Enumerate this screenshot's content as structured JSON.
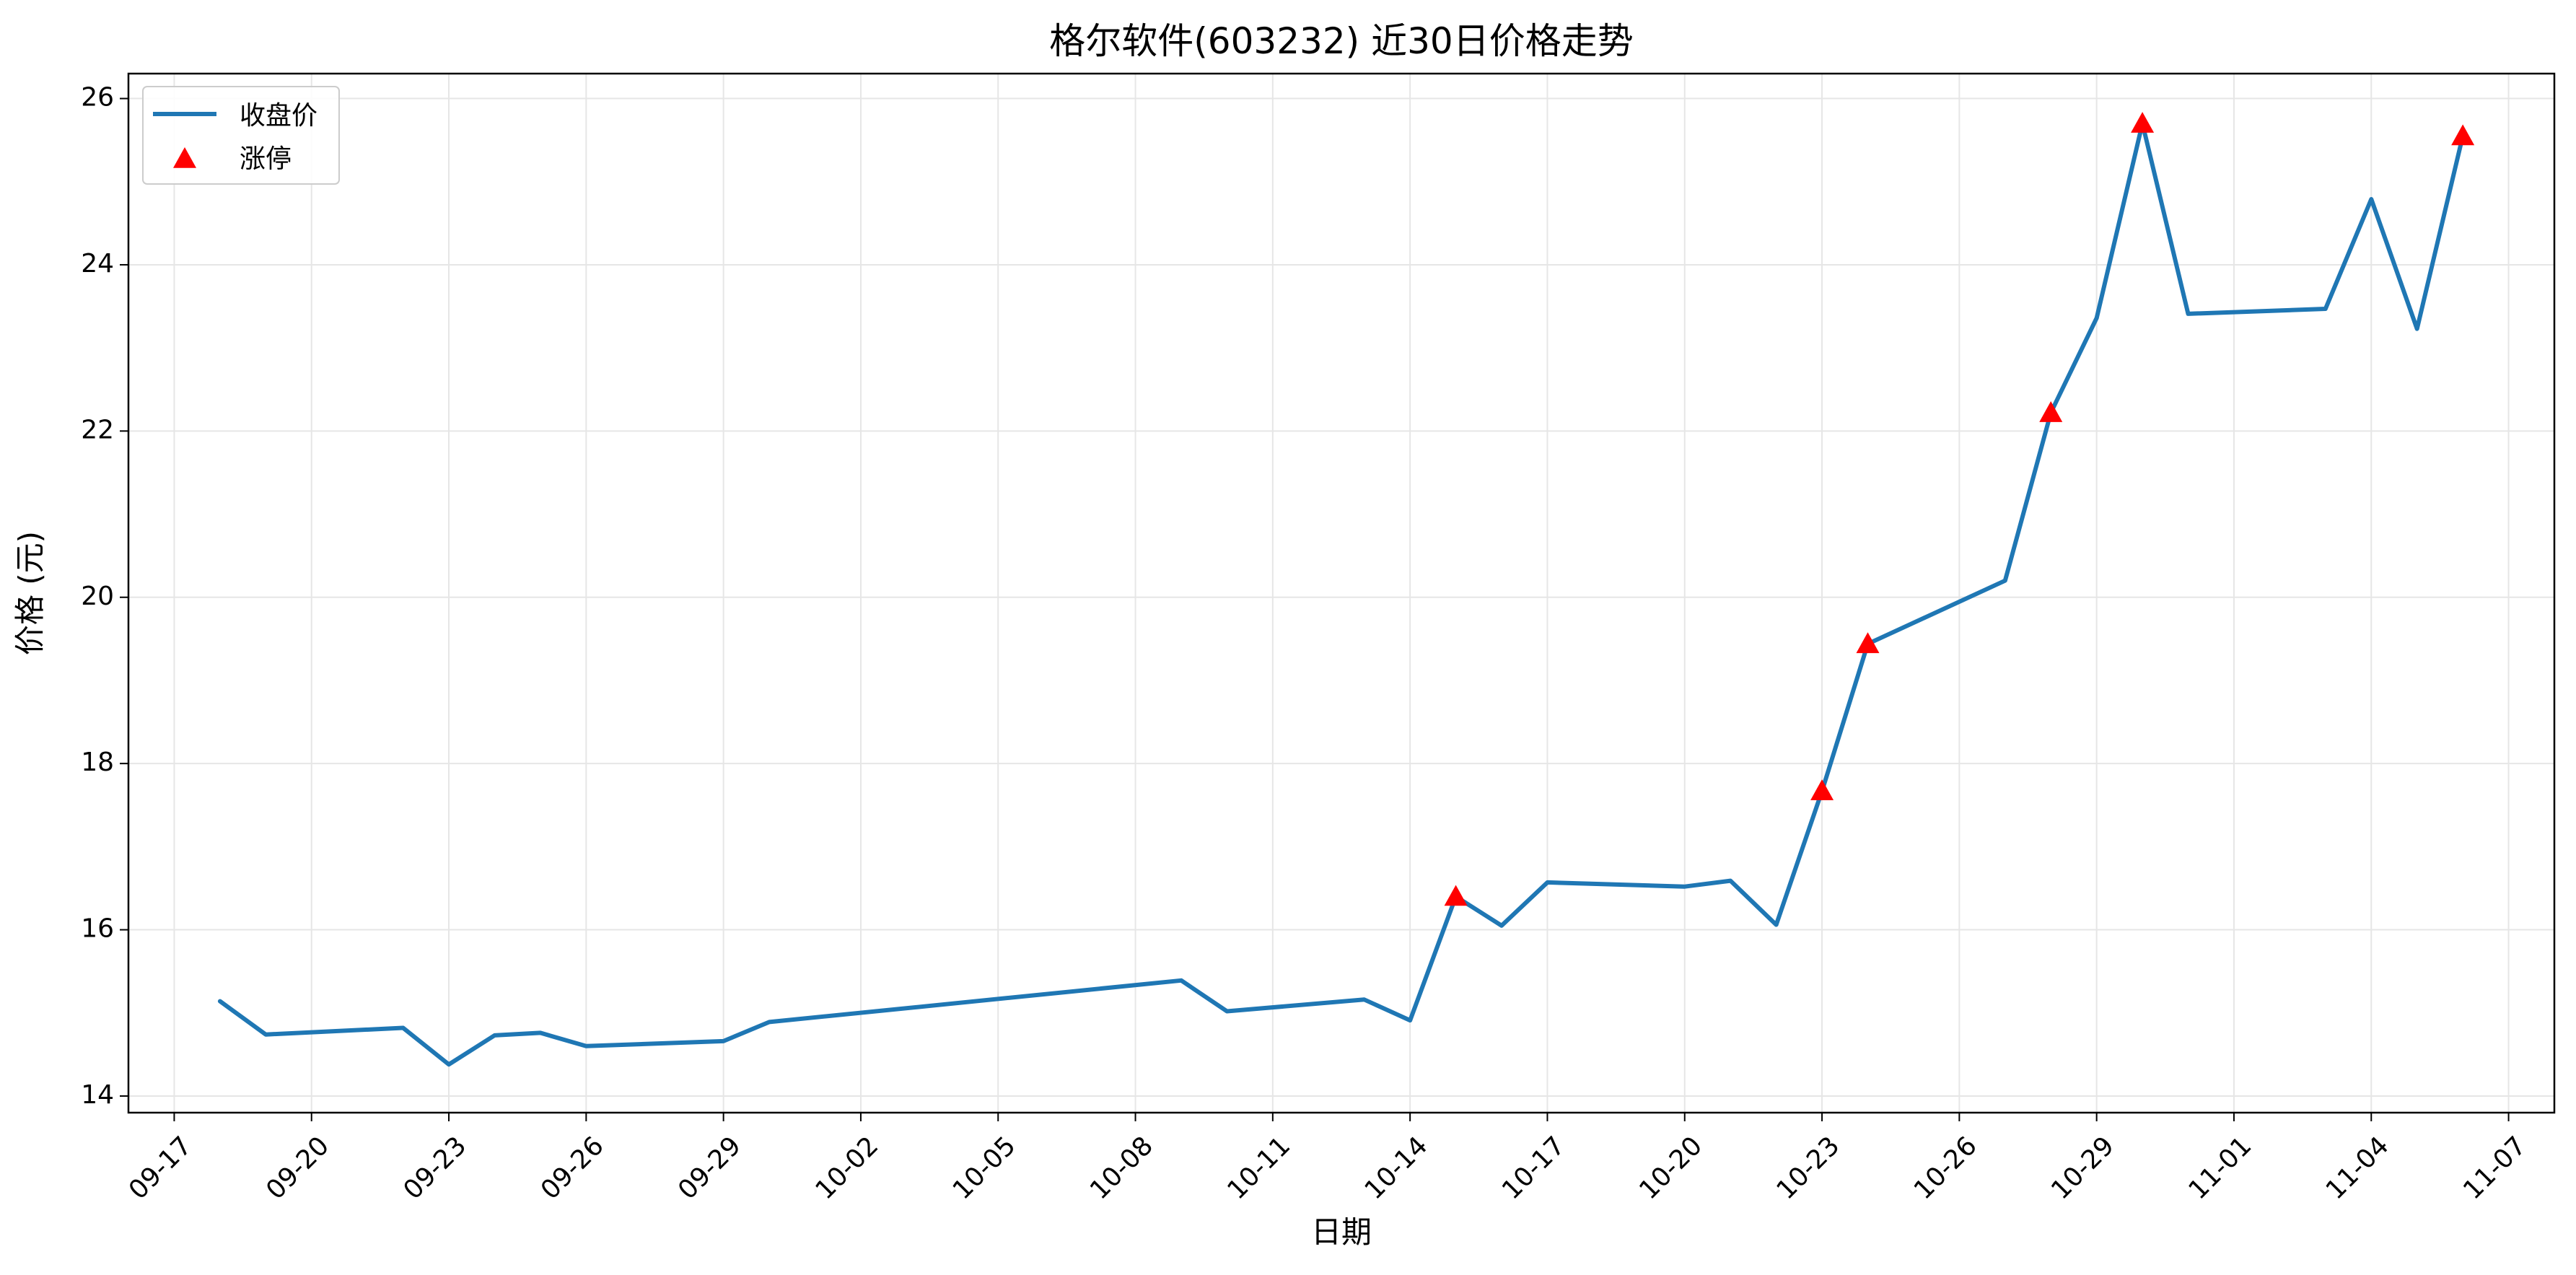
{
  "chart_data": {
    "type": "line",
    "title": "格尔软件(603232) 近30日价格走势",
    "xlabel": "日期",
    "ylabel": "价格 (元)",
    "x_ticks": [
      "09-17",
      "09-20",
      "09-23",
      "09-26",
      "09-29",
      "10-02",
      "10-05",
      "10-08",
      "10-11",
      "10-14",
      "10-17",
      "10-20",
      "10-23",
      "10-26",
      "10-29",
      "11-01",
      "11-04",
      "11-07"
    ],
    "y_ticks": [
      14,
      16,
      18,
      20,
      22,
      24,
      26
    ],
    "xlim": [
      "2024-09-16",
      "2024-11-08"
    ],
    "ylim": [
      13.8,
      26.3
    ],
    "grid": true,
    "legend_position": "top-left",
    "colors": {
      "line": "#1f77b4",
      "limit_up": "#ff0000",
      "grid": "#e6e6e6"
    },
    "series": [
      {
        "name": "收盘价",
        "style": "line",
        "points": [
          {
            "date": "2024-09-18",
            "value": 15.14
          },
          {
            "date": "2024-09-19",
            "value": 14.74
          },
          {
            "date": "2024-09-22",
            "value": 14.82
          },
          {
            "date": "2024-09-23",
            "value": 14.38
          },
          {
            "date": "2024-09-24",
            "value": 14.73
          },
          {
            "date": "2024-09-25",
            "value": 14.76
          },
          {
            "date": "2024-09-26",
            "value": 14.6
          },
          {
            "date": "2024-09-29",
            "value": 14.66
          },
          {
            "date": "2024-09-30",
            "value": 14.89
          },
          {
            "date": "2024-10-09",
            "value": 15.39
          },
          {
            "date": "2024-10-10",
            "value": 15.02
          },
          {
            "date": "2024-10-13",
            "value": 15.16
          },
          {
            "date": "2024-10-14",
            "value": 14.91
          },
          {
            "date": "2024-10-15",
            "value": 16.4
          },
          {
            "date": "2024-10-16",
            "value": 16.05
          },
          {
            "date": "2024-10-17",
            "value": 16.57
          },
          {
            "date": "2024-10-20",
            "value": 16.52
          },
          {
            "date": "2024-10-21",
            "value": 16.59
          },
          {
            "date": "2024-10-22",
            "value": 16.06
          },
          {
            "date": "2024-10-23",
            "value": 17.67
          },
          {
            "date": "2024-10-24",
            "value": 19.44
          },
          {
            "date": "2024-10-27",
            "value": 20.2
          },
          {
            "date": "2024-10-28",
            "value": 22.22
          },
          {
            "date": "2024-10-29",
            "value": 23.36
          },
          {
            "date": "2024-10-30",
            "value": 25.7
          },
          {
            "date": "2024-10-31",
            "value": 23.41
          },
          {
            "date": "2024-11-03",
            "value": 23.47
          },
          {
            "date": "2024-11-04",
            "value": 24.79
          },
          {
            "date": "2024-11-05",
            "value": 23.23
          },
          {
            "date": "2024-11-06",
            "value": 25.55
          }
        ]
      },
      {
        "name": "涨停",
        "style": "marker",
        "marker": "triangle",
        "points": [
          {
            "date": "2024-10-15",
            "value": 16.4
          },
          {
            "date": "2024-10-23",
            "value": 17.67
          },
          {
            "date": "2024-10-24",
            "value": 19.44
          },
          {
            "date": "2024-10-28",
            "value": 22.22
          },
          {
            "date": "2024-10-30",
            "value": 25.7
          },
          {
            "date": "2024-11-06",
            "value": 25.55
          }
        ]
      }
    ]
  }
}
